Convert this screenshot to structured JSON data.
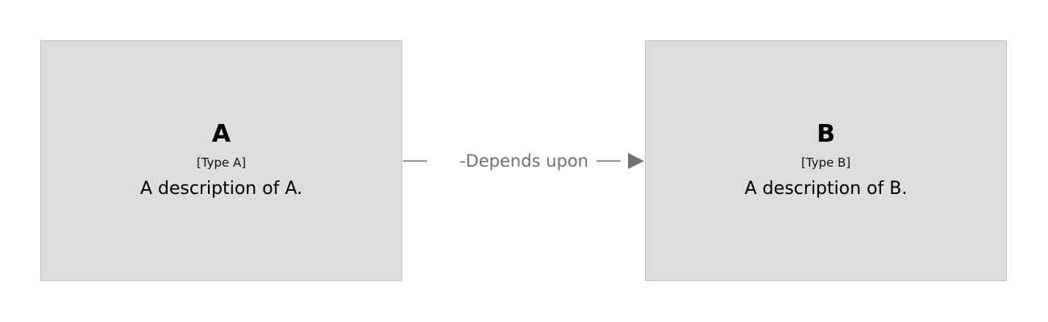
{
  "diagram": {
    "nodes": [
      {
        "id": "A",
        "name": "A",
        "type": "[Type A]",
        "description": "A description of A."
      },
      {
        "id": "B",
        "name": "B",
        "type": "[Type B]",
        "description": "A description of B."
      }
    ],
    "edges": [
      {
        "from": "A",
        "to": "B",
        "label": "-Depends upon"
      }
    ]
  },
  "colors": {
    "node_fill": "#dddddd",
    "node_border": "#c4c4c4",
    "edge": "#707070"
  }
}
